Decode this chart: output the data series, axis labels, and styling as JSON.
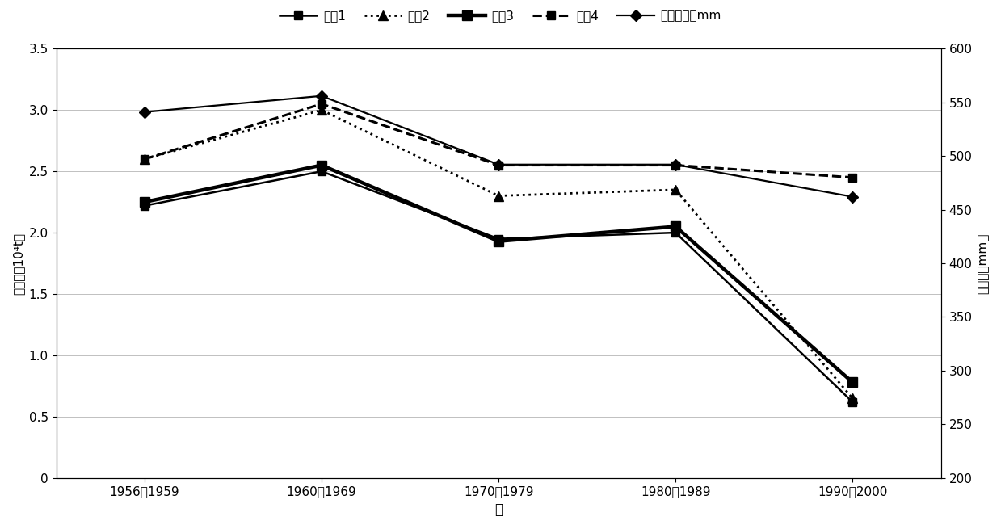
{
  "x_labels": [
    "1956－1959",
    "1960－1969",
    "1970－1979",
    "1980－1989",
    "1990－2000"
  ],
  "x_positions": [
    0,
    1,
    2,
    3,
    4
  ],
  "series": [
    {
      "name": "情具1",
      "values": [
        2.22,
        2.5,
        1.95,
        2.0,
        0.62
      ],
      "linestyle": "-",
      "linewidth": 1.8,
      "marker": "s",
      "markersize": 7,
      "color": "#000000",
      "secondary": false
    },
    {
      "name": "情具2",
      "values": [
        2.6,
        3.0,
        2.3,
        2.35,
        0.65
      ],
      "linestyle": ":",
      "linewidth": 2.0,
      "marker": "^",
      "markersize": 8,
      "color": "#000000",
      "secondary": false
    },
    {
      "name": "情具3",
      "values": [
        2.25,
        2.55,
        1.93,
        2.05,
        0.78
      ],
      "linestyle": "-",
      "linewidth": 3.2,
      "marker": "s",
      "markersize": 8,
      "color": "#000000",
      "secondary": false
    },
    {
      "name": "情具4",
      "values": [
        2.6,
        3.05,
        2.55,
        2.55,
        2.45
      ],
      "linestyle": "--",
      "linewidth": 2.2,
      "marker": "s",
      "markersize": 7,
      "color": "#000000",
      "secondary": false
    },
    {
      "name": "年均降雨量mm",
      "values": [
        541,
        556,
        492,
        492,
        462
      ],
      "linestyle": "-",
      "linewidth": 1.6,
      "marker": "D",
      "markersize": 7,
      "color": "#000000",
      "secondary": true
    }
  ],
  "ylabel_left": "输沙量（10⁴t）",
  "ylabel_right": "降水量（mm）",
  "xlabel": "年",
  "ylim_left": [
    0,
    3.5
  ],
  "ylim_right": [
    200,
    600
  ],
  "yticks_left": [
    0,
    0.5,
    1.0,
    1.5,
    2.0,
    2.5,
    3.0,
    3.5
  ],
  "yticks_right": [
    200,
    250,
    300,
    350,
    400,
    450,
    500,
    550,
    600
  ],
  "background_color": "#ffffff",
  "grid_color": "#c0c0c0",
  "axis_fontsize": 11,
  "tick_fontsize": 11,
  "legend_fontsize": 11
}
